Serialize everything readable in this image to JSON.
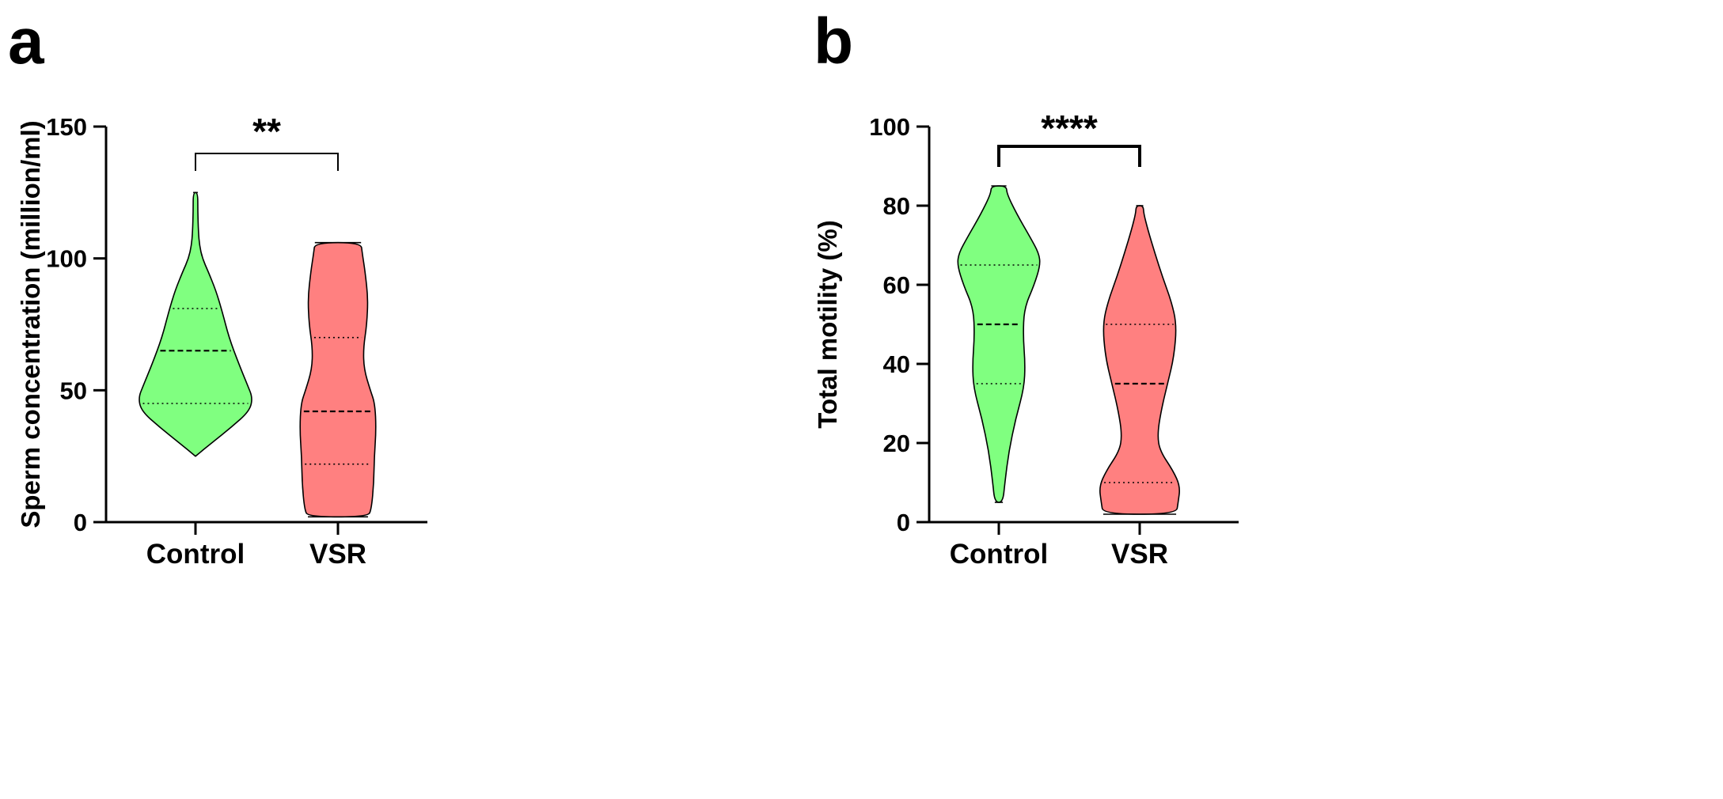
{
  "chart_data": [
    {
      "panel_label": "a",
      "type": "violin",
      "title": "",
      "xlabel": "",
      "ylabel": "Sperm concentration (million/ml)",
      "ylim": [
        0,
        150
      ],
      "yticks": [
        0,
        50,
        100,
        150
      ],
      "categories": [
        "Control",
        "VSR"
      ],
      "significance": "**",
      "series": [
        {
          "name": "Control",
          "color": "#80ff80",
          "min": 25,
          "max": 125,
          "q1": 45,
          "median": 65,
          "q3": 81,
          "density_profile": [
            [
              25,
              0.0
            ],
            [
              30,
              0.28
            ],
            [
              36,
              0.62
            ],
            [
              42,
              0.93
            ],
            [
              47,
              0.99
            ],
            [
              52,
              0.9
            ],
            [
              60,
              0.75
            ],
            [
              70,
              0.58
            ],
            [
              80,
              0.46
            ],
            [
              88,
              0.35
            ],
            [
              95,
              0.22
            ],
            [
              100,
              0.12
            ],
            [
              105,
              0.07
            ],
            [
              110,
              0.05
            ],
            [
              118,
              0.04
            ],
            [
              125,
              0.04
            ]
          ]
        },
        {
          "name": "VSR",
          "color": "#ff8080",
          "min": 2,
          "max": 106,
          "q1": 22,
          "median": 42,
          "q3": 70,
          "density_profile": [
            [
              2,
              0.52
            ],
            [
              5,
              0.58
            ],
            [
              15,
              0.62
            ],
            [
              25,
              0.63
            ],
            [
              35,
              0.66
            ],
            [
              45,
              0.64
            ],
            [
              50,
              0.56
            ],
            [
              58,
              0.45
            ],
            [
              66,
              0.44
            ],
            [
              75,
              0.5
            ],
            [
              85,
              0.52
            ],
            [
              95,
              0.47
            ],
            [
              102,
              0.42
            ],
            [
              106,
              0.4
            ]
          ]
        }
      ]
    },
    {
      "panel_label": "b",
      "type": "violin",
      "title": "",
      "xlabel": "",
      "ylabel": "Total motility (%)",
      "ylim": [
        0,
        100
      ],
      "yticks": [
        0,
        20,
        40,
        60,
        80,
        100
      ],
      "categories": [
        "Control",
        "VSR"
      ],
      "significance": "****",
      "series": [
        {
          "name": "Control",
          "color": "#80ff80",
          "min": 5,
          "max": 85,
          "q1": 35,
          "median": 50,
          "q3": 65,
          "density_profile": [
            [
              5,
              0.08
            ],
            [
              10,
              0.12
            ],
            [
              18,
              0.2
            ],
            [
              26,
              0.33
            ],
            [
              34,
              0.5
            ],
            [
              40,
              0.52
            ],
            [
              47,
              0.48
            ],
            [
              54,
              0.5
            ],
            [
              60,
              0.7
            ],
            [
              65,
              0.82
            ],
            [
              68,
              0.79
            ],
            [
              72,
              0.62
            ],
            [
              78,
              0.35
            ],
            [
              83,
              0.16
            ],
            [
              85,
              0.15
            ]
          ]
        },
        {
          "name": "VSR",
          "color": "#ff8080",
          "min": 2,
          "max": 80,
          "q1": 10,
          "median": 35,
          "q3": 50,
          "density_profile": [
            [
              2,
              0.72
            ],
            [
              5,
              0.76
            ],
            [
              9,
              0.8
            ],
            [
              13,
              0.66
            ],
            [
              18,
              0.4
            ],
            [
              22,
              0.35
            ],
            [
              28,
              0.42
            ],
            [
              35,
              0.55
            ],
            [
              42,
              0.68
            ],
            [
              50,
              0.73
            ],
            [
              56,
              0.62
            ],
            [
              62,
              0.45
            ],
            [
              68,
              0.3
            ],
            [
              74,
              0.16
            ],
            [
              78,
              0.08
            ],
            [
              80,
              0.07
            ]
          ]
        }
      ]
    }
  ]
}
